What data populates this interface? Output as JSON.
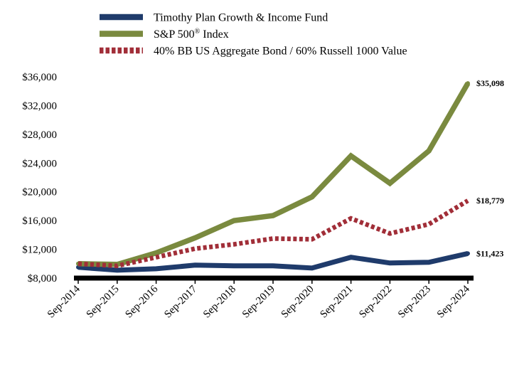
{
  "chart_data": {
    "type": "line",
    "title": "",
    "xlabel": "",
    "ylabel": "",
    "categories": [
      "Sep-2014",
      "Sep-2015",
      "Sep-2016",
      "Sep-2017",
      "Sep-2018",
      "Sep-2019",
      "Sep-2020",
      "Sep-2021",
      "Sep-2022",
      "Sep-2023",
      "Sep-2024"
    ],
    "ylim": [
      8000,
      36000
    ],
    "yticks": [
      8000,
      12000,
      16000,
      20000,
      24000,
      28000,
      32000,
      36000
    ],
    "ytick_labels": [
      "$8,000",
      "$12,000",
      "$16,000",
      "$20,000",
      "$24,000",
      "$28,000",
      "$32,000",
      "$36,000"
    ],
    "grid": false,
    "legend_position": "top",
    "series": [
      {
        "name": "Timothy Plan Growth & Income Fund",
        "color": "#1F3B6B",
        "values": [
          9500,
          9100,
          9300,
          9800,
          9700,
          9700,
          9400,
          10900,
          10100,
          10200,
          11423
        ],
        "end_label": "$11,423"
      },
      {
        "name": "S&P 500® Index",
        "color": "#7A8A3F",
        "values": [
          10000,
          9900,
          11500,
          13600,
          16000,
          16700,
          19300,
          25000,
          21200,
          25700,
          35098
        ],
        "end_label": "$35,098"
      },
      {
        "name": "40% BB US Aggregate Bond / 60% Russell 1000 Value",
        "color": "#A12E38",
        "values": [
          10000,
          9700,
          10900,
          12100,
          12700,
          13500,
          13400,
          16300,
          14200,
          15500,
          18779
        ],
        "end_label": "$18,779"
      }
    ]
  }
}
